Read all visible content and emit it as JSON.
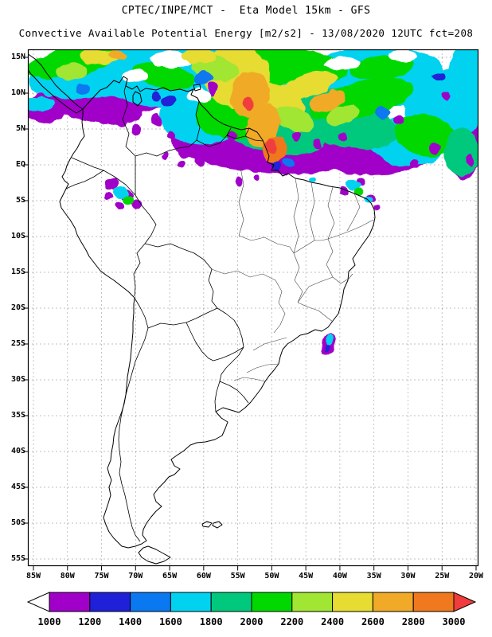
{
  "header": {
    "title_line1": "CPTEC/INPE/MCT -  Eta Model 15km - GFS",
    "title_line2": "Convective Available Potential Energy [m2/s2] - 13/08/2020 12UTC fct=208"
  },
  "map": {
    "lat_labels": [
      "15N",
      "10N",
      "5N",
      "EQ",
      "5S",
      "10S",
      "15S",
      "20S",
      "25S",
      "30S",
      "35S",
      "40S",
      "45S",
      "50S",
      "55S"
    ],
    "lon_labels": [
      "85W",
      "80W",
      "75W",
      "70W",
      "65W",
      "60W",
      "55W",
      "50W",
      "45W",
      "40W",
      "35W",
      "30W",
      "25W",
      "20W"
    ]
  },
  "colorbar": {
    "tick_labels": [
      "1000",
      "1200",
      "1400",
      "1600",
      "1800",
      "2000",
      "2200",
      "2400",
      "2600",
      "2800",
      "3000"
    ],
    "segment_colors": [
      "#a000c8",
      "#2020d8",
      "#0a78f0",
      "#00d2f0",
      "#00c87d",
      "#00d800",
      "#a0e632",
      "#e6dc32",
      "#f0aa28",
      "#f0781e"
    ],
    "below_min_color": "#ffffff",
    "above_max_color": "#f03c3c"
  }
}
